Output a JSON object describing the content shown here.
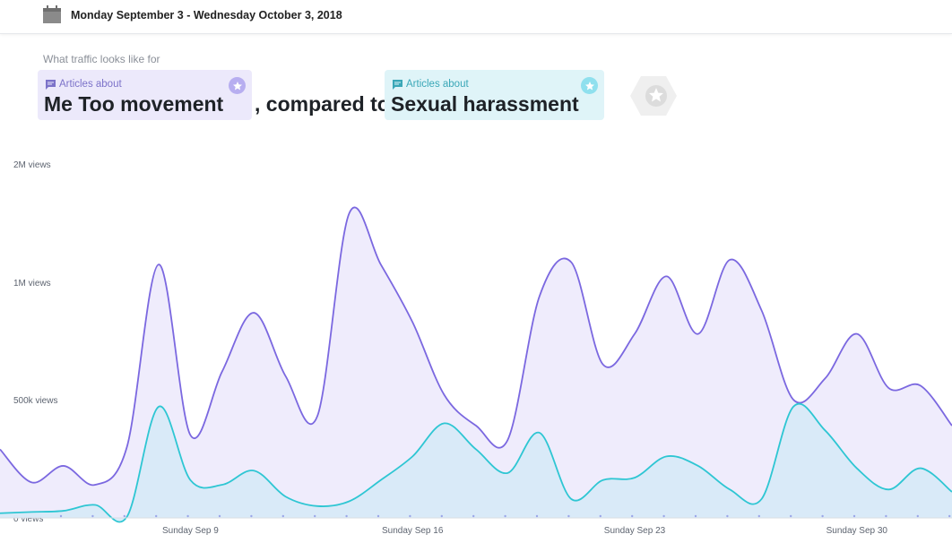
{
  "header": {
    "date_range": "Monday September 3 - Wednesday October 3, 2018",
    "icon": "calendar-icon"
  },
  "comparison": {
    "prefix_label": "What traffic looks like for",
    "primary": {
      "kicker": "Articles about",
      "title": "Me Too movement",
      "icon": "comment-icon",
      "color": "#7b68e0"
    },
    "connector": ", compared to",
    "secondary": {
      "kicker": "Articles about",
      "title": "Sexual harassment",
      "icon": "comment-icon",
      "color": "#2ec6d3"
    },
    "add_icon": "star-icon"
  },
  "chart_data": {
    "type": "area",
    "x": [
      "Sep 3",
      "Sep 4",
      "Sep 5",
      "Sep 6",
      "Sep 7",
      "Sep 8",
      "Sep 9",
      "Sep 10",
      "Sep 11",
      "Sep 12",
      "Sep 13",
      "Sep 14",
      "Sep 15",
      "Sep 16",
      "Sep 17",
      "Sep 18",
      "Sep 19",
      "Sep 20",
      "Sep 21",
      "Sep 22",
      "Sep 23",
      "Sep 24",
      "Sep 25",
      "Sep 26",
      "Sep 27",
      "Sep 28",
      "Sep 29",
      "Sep 30",
      "Oct 1",
      "Oct 2",
      "Oct 3"
    ],
    "xticks": [
      {
        "index": 6,
        "label": "Sunday Sep 9"
      },
      {
        "index": 13,
        "label": "Sunday Sep 16"
      },
      {
        "index": 20,
        "label": "Sunday Sep 23"
      },
      {
        "index": 27,
        "label": "Sunday Sep 30"
      }
    ],
    "yticks": [
      {
        "value": 0,
        "label": "0 views"
      },
      {
        "value": 500000,
        "label": "500k views"
      },
      {
        "value": 1000000,
        "label": "1M views"
      },
      {
        "value": 2000000,
        "label": "2M views"
      }
    ],
    "ylim": [
      0,
      2000000
    ],
    "grid": false,
    "series": [
      {
        "name": "Me Too movement",
        "color": "#7b68e0",
        "fill": "#ece9fb",
        "values": [
          290000,
          150000,
          220000,
          140000,
          300000,
          1150000,
          350000,
          620000,
          870000,
          600000,
          430000,
          1580000,
          1150000,
          830000,
          520000,
          390000,
          330000,
          940000,
          1170000,
          650000,
          780000,
          1050000,
          780000,
          1190000,
          880000,
          500000,
          590000,
          780000,
          550000,
          560000,
          390000
        ]
      },
      {
        "name": "Sexual harassment",
        "color": "#2ec6d3",
        "fill": "#d6eaf7",
        "values": [
          20000,
          25000,
          30000,
          55000,
          5000,
          470000,
          160000,
          140000,
          200000,
          90000,
          50000,
          70000,
          160000,
          260000,
          400000,
          290000,
          190000,
          360000,
          80000,
          160000,
          170000,
          260000,
          220000,
          120000,
          80000,
          470000,
          370000,
          210000,
          120000,
          210000,
          110000
        ]
      }
    ]
  }
}
